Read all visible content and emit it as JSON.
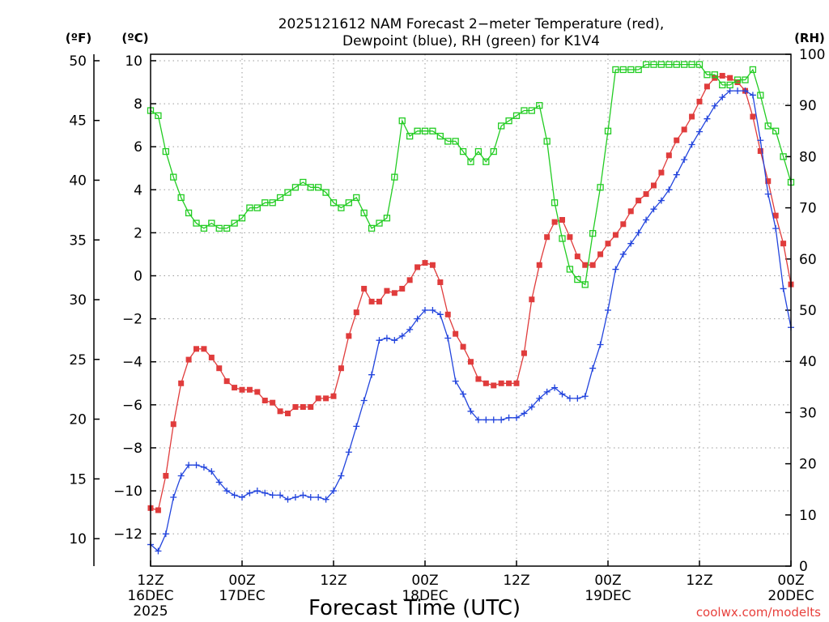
{
  "chart_data": {
    "type": "line",
    "title": "2025121612 NAM Forecast 2−meter Temperature (red), Dewpoint (blue), RH (green) for K1V4",
    "title_lines": [
      "2025121612 NAM Forecast 2−meter Temperature (red),",
      "Dewpoint (blue), RH (green) for K1V4"
    ],
    "xlabel": "Forecast Time (UTC)",
    "units": {
      "fahrenheit": "(ºF)",
      "celsius": "(ºC)",
      "rh": "(RH)"
    },
    "credit": "coolwx.com/modelts",
    "x_range_hours": [
      0,
      84
    ],
    "x_ticks": [
      {
        "hour": 0,
        "lines": [
          "12Z",
          "16DEC",
          "2025"
        ]
      },
      {
        "hour": 12,
        "lines": [
          "00Z",
          "17DEC"
        ]
      },
      {
        "hour": 24,
        "lines": [
          "12Z"
        ]
      },
      {
        "hour": 36,
        "lines": [
          "00Z",
          "18DEC"
        ]
      },
      {
        "hour": 48,
        "lines": [
          "12Z"
        ]
      },
      {
        "hour": 60,
        "lines": [
          "00Z",
          "19DEC"
        ]
      },
      {
        "hour": 72,
        "lines": [
          "12Z"
        ]
      },
      {
        "hour": 84,
        "lines": [
          "00Z",
          "20DEC"
        ]
      }
    ],
    "celsius_axis": {
      "range": [
        -13.5,
        10.3
      ],
      "ticks": [
        10,
        8,
        6,
        4,
        2,
        0,
        -2,
        -4,
        -6,
        -8,
        -10,
        -12
      ],
      "tick_labels": [
        "10",
        "8",
        "6",
        "4",
        "2",
        "0",
        "−2",
        "−4",
        "−6",
        "−8",
        "−10",
        "−12"
      ]
    },
    "fahrenheit_axis": {
      "ticks": [
        50,
        45,
        40,
        35,
        30,
        25,
        20,
        15,
        10
      ],
      "tick_labels": [
        "50",
        "45",
        "40",
        "35",
        "30",
        "25",
        "20",
        "15",
        "10"
      ]
    },
    "rh_axis": {
      "range": [
        0,
        100
      ],
      "ticks": [
        100,
        90,
        80,
        70,
        60,
        50,
        40,
        30,
        20,
        10,
        0
      ],
      "tick_labels": [
        "100",
        "90",
        "80",
        "70",
        "60",
        "50",
        "40",
        "30",
        "20",
        "10",
        "0"
      ]
    },
    "grid": true,
    "x": [
      0,
      1,
      2,
      3,
      4,
      5,
      6,
      7,
      8,
      9,
      10,
      11,
      12,
      13,
      14,
      15,
      16,
      17,
      18,
      19,
      20,
      21,
      22,
      23,
      24,
      25,
      26,
      27,
      28,
      29,
      30,
      31,
      32,
      33,
      34,
      35,
      36,
      37,
      38,
      39,
      40,
      41,
      42,
      43,
      44,
      45,
      46,
      47,
      48,
      49,
      50,
      51,
      52,
      53,
      54,
      55,
      56,
      57,
      58,
      59,
      60,
      61,
      62,
      63,
      64,
      65,
      66,
      67,
      68,
      69,
      70,
      71,
      72,
      73,
      74,
      75,
      76,
      77,
      78,
      79,
      80,
      81,
      82,
      83,
      84
    ],
    "series": [
      {
        "name": "Temperature",
        "axis": "celsius",
        "color": "#e03c3c",
        "marker": "filled-square",
        "values": [
          -10.8,
          -10.9,
          -9.3,
          -6.9,
          -5.0,
          -3.9,
          -3.4,
          -3.4,
          -3.8,
          -4.3,
          -4.9,
          -5.2,
          -5.3,
          -5.3,
          -5.4,
          -5.8,
          -5.9,
          -6.3,
          -6.4,
          -6.1,
          -6.1,
          -6.1,
          -5.7,
          -5.7,
          -5.6,
          -4.3,
          -2.8,
          -1.7,
          -0.6,
          -1.2,
          -1.2,
          -0.7,
          -0.8,
          -0.6,
          -0.2,
          0.4,
          0.6,
          0.5,
          -0.3,
          -1.8,
          -2.7,
          -3.3,
          -4.0,
          -4.8,
          -5.0,
          -5.1,
          -5.0,
          -5.0,
          -5.0,
          -3.6,
          -1.1,
          0.5,
          1.8,
          2.5,
          2.6,
          1.8,
          0.9,
          0.5,
          0.5,
          1.0,
          1.5,
          1.9,
          2.4,
          3.0,
          3.5,
          3.8,
          4.2,
          4.8,
          5.6,
          6.3,
          6.8,
          7.4,
          8.1,
          8.8,
          9.2,
          9.3,
          9.2,
          9.0,
          8.6,
          7.4,
          5.8,
          4.4,
          2.8,
          1.5,
          -0.4
        ]
      },
      {
        "name": "Dewpoint",
        "axis": "celsius",
        "color": "#2244dd",
        "marker": "plus",
        "values": [
          -12.5,
          -12.8,
          -12.0,
          -10.3,
          -9.3,
          -8.8,
          -8.8,
          -8.9,
          -9.1,
          -9.6,
          -10.0,
          -10.2,
          -10.3,
          -10.1,
          -10.0,
          -10.1,
          -10.2,
          -10.2,
          -10.4,
          -10.3,
          -10.2,
          -10.3,
          -10.3,
          -10.4,
          -10.0,
          -9.3,
          -8.2,
          -7.0,
          -5.8,
          -4.6,
          -3.0,
          -2.9,
          -3.0,
          -2.8,
          -2.5,
          -2.0,
          -1.6,
          -1.6,
          -1.8,
          -2.9,
          -4.9,
          -5.5,
          -6.3,
          -6.7,
          -6.7,
          -6.7,
          -6.7,
          -6.6,
          -6.6,
          -6.4,
          -6.1,
          -5.7,
          -5.4,
          -5.2,
          -5.5,
          -5.7,
          -5.7,
          -5.6,
          -4.3,
          -3.2,
          -1.6,
          0.3,
          1.0,
          1.5,
          2.0,
          2.6,
          3.1,
          3.5,
          4.0,
          4.7,
          5.4,
          6.1,
          6.7,
          7.3,
          7.9,
          8.3,
          8.6,
          8.6,
          8.6,
          8.4,
          6.3,
          3.8,
          2.2,
          -0.6,
          -2.4
        ]
      },
      {
        "name": "RH",
        "axis": "rh",
        "color": "#22cc22",
        "marker": "open-square",
        "values": [
          89,
          88,
          81,
          76,
          72,
          69,
          67,
          66,
          67,
          66,
          66,
          67,
          68,
          70,
          70,
          71,
          71,
          72,
          73,
          74,
          75,
          74,
          74,
          73,
          71,
          70,
          71,
          72,
          69,
          66,
          67,
          68,
          76,
          87,
          84,
          85,
          85,
          85,
          84,
          83,
          83,
          81,
          79,
          81,
          79,
          81,
          86,
          87,
          88,
          89,
          89,
          90,
          83,
          71,
          64,
          58,
          56,
          55,
          65,
          74,
          85,
          97,
          97,
          97,
          97,
          98,
          98,
          98,
          98,
          98,
          98,
          98,
          98,
          96,
          96,
          94,
          94,
          95,
          95,
          97,
          92,
          86,
          85,
          80,
          75
        ]
      }
    ]
  }
}
